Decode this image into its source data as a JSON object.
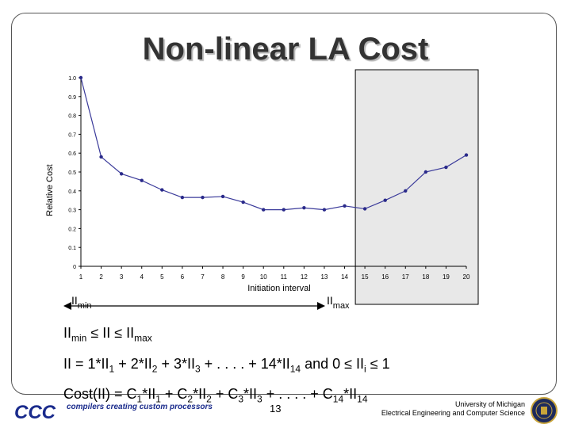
{
  "slide": {
    "title": "Non-linear LA Cost",
    "page_number": "13",
    "footer_logo_text": "compilers creating custom processors",
    "logo_mark": "CCC",
    "university_line1": "University of Michigan",
    "university_line2": "Electrical Engineering and Computer Science"
  },
  "chart_data": {
    "type": "line",
    "xlabel": "Initiation interval",
    "ylabel": "Relative Cost",
    "categories": [
      "1",
      "2",
      "3",
      "4",
      "5",
      "6",
      "7",
      "8",
      "9",
      "10",
      "11",
      "12",
      "13",
      "14",
      "15",
      "16",
      "17",
      "18",
      "19",
      "20"
    ],
    "values": [
      1.0,
      0.58,
      0.49,
      0.455,
      0.405,
      0.365,
      0.365,
      0.37,
      0.34,
      0.3,
      0.3,
      0.31,
      0.3,
      0.32,
      0.305,
      0.35,
      0.4,
      0.5,
      0.525,
      0.59
    ],
    "ylim": [
      0,
      1.0
    ],
    "yticks": [
      "0",
      "0.1",
      "0.2",
      "0.3",
      "0.4",
      "0.5",
      "0.6",
      "0.7",
      "0.8",
      "0.9",
      "1.0"
    ],
    "grid": false,
    "highlight_region": {
      "from": "15",
      "to": "20"
    },
    "colors": {
      "line": "#3a3a9a",
      "marker": "#2a2a8a",
      "highlight_fill": "#e8e8e8"
    }
  },
  "annotations": {
    "left_label": "II",
    "left_sub": "min",
    "right_label": "II",
    "right_sub": "max"
  },
  "formulas": {
    "line1": {
      "a": "II",
      "a_sub": "min",
      "b": " ≤ II ≤ II",
      "b_sub": "max"
    },
    "line2": "II = 1*II1 + 2*II2 + 3*II3 + . . . . + 14*II14  and 0 ≤ IIi ≤ 1",
    "line3": "Cost(II) = C1*II1 + C2*II2 + C3*II3 + . . . . + C14*II14"
  }
}
